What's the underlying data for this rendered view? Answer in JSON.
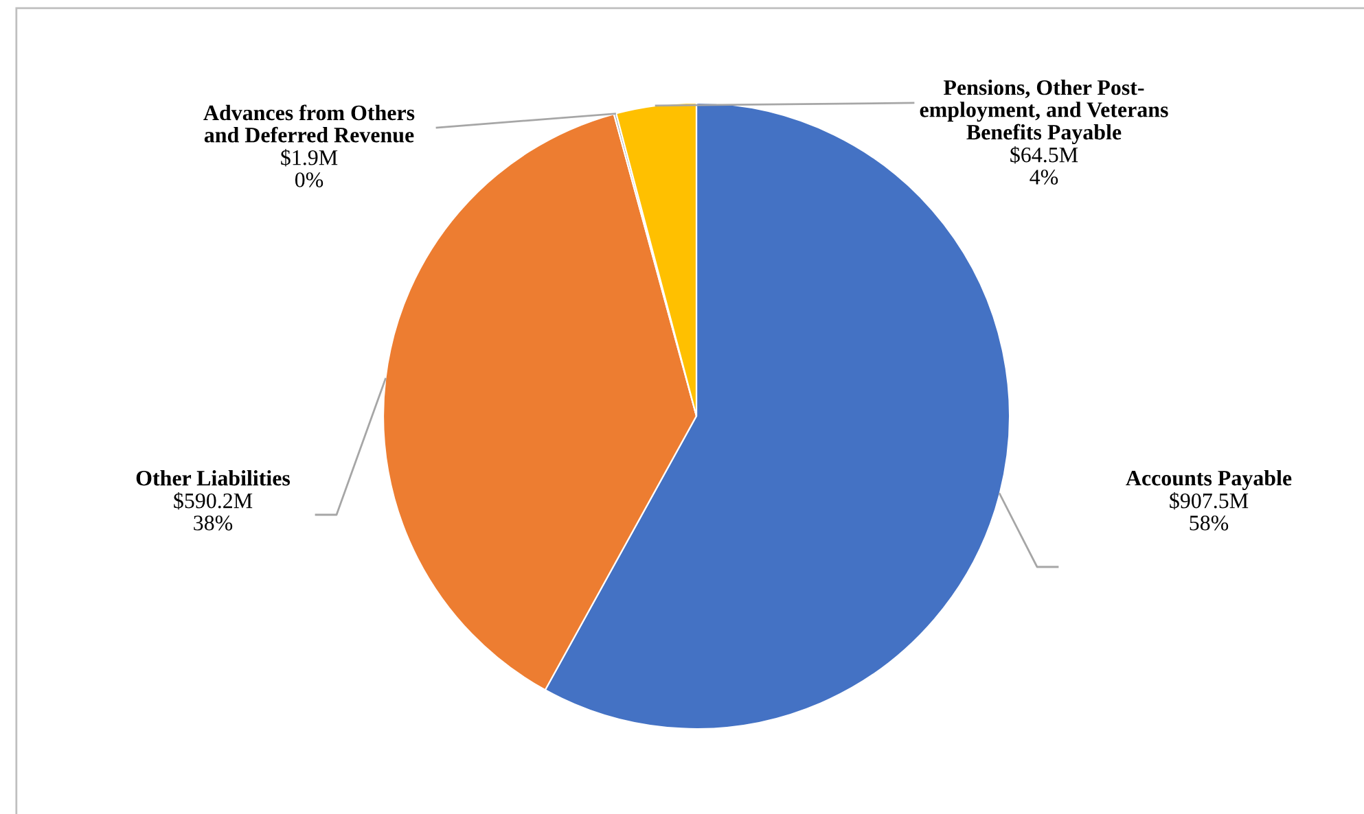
{
  "chart_data": {
    "type": "pie",
    "categories": [
      "Accounts Payable",
      "Other Liabilities",
      "Advances from Others\nand Deferred Revenue",
      "Pensions, Other Post-\nemployment, and Veterans\nBenefits Payable"
    ],
    "values": [
      907.5,
      590.2,
      1.9,
      64.5
    ],
    "colors": [
      "#4472c4",
      "#ed7d31",
      "#a5a5a5",
      "#ffc000"
    ],
    "value_labels": [
      "$907.5M",
      "$590.2M",
      "$1.9M",
      "$64.5M"
    ],
    "annotations": [
      "58%",
      "38%",
      "0%",
      "4%"
    ]
  }
}
